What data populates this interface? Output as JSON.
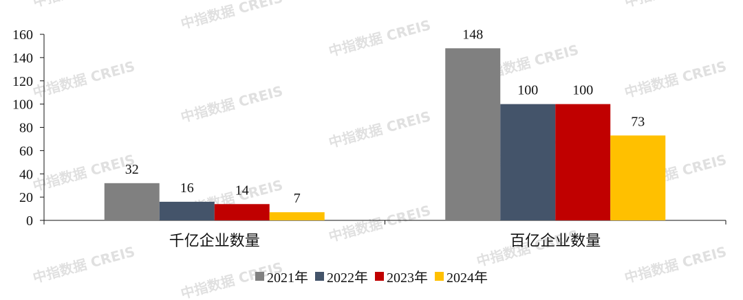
{
  "watermark": "中指数据 CREIS",
  "chart_data": {
    "type": "bar",
    "categories": [
      "千亿企业数量",
      "百亿企业数量"
    ],
    "series": [
      {
        "name": "2021年",
        "values": [
          32,
          148
        ],
        "color": "#808080"
      },
      {
        "name": "2022年",
        "values": [
          16,
          100
        ],
        "color": "#44546a"
      },
      {
        "name": "2023年",
        "values": [
          14,
          100
        ],
        "color": "#c00000"
      },
      {
        "name": "2024年",
        "values": [
          7,
          73
        ],
        "color": "#ffc000"
      }
    ],
    "yticks": [
      "0",
      "20",
      "40",
      "60",
      "80",
      "100",
      "120",
      "140",
      "160"
    ],
    "ylim": [
      0,
      160
    ],
    "grid": false,
    "legend_position": "bottom"
  }
}
